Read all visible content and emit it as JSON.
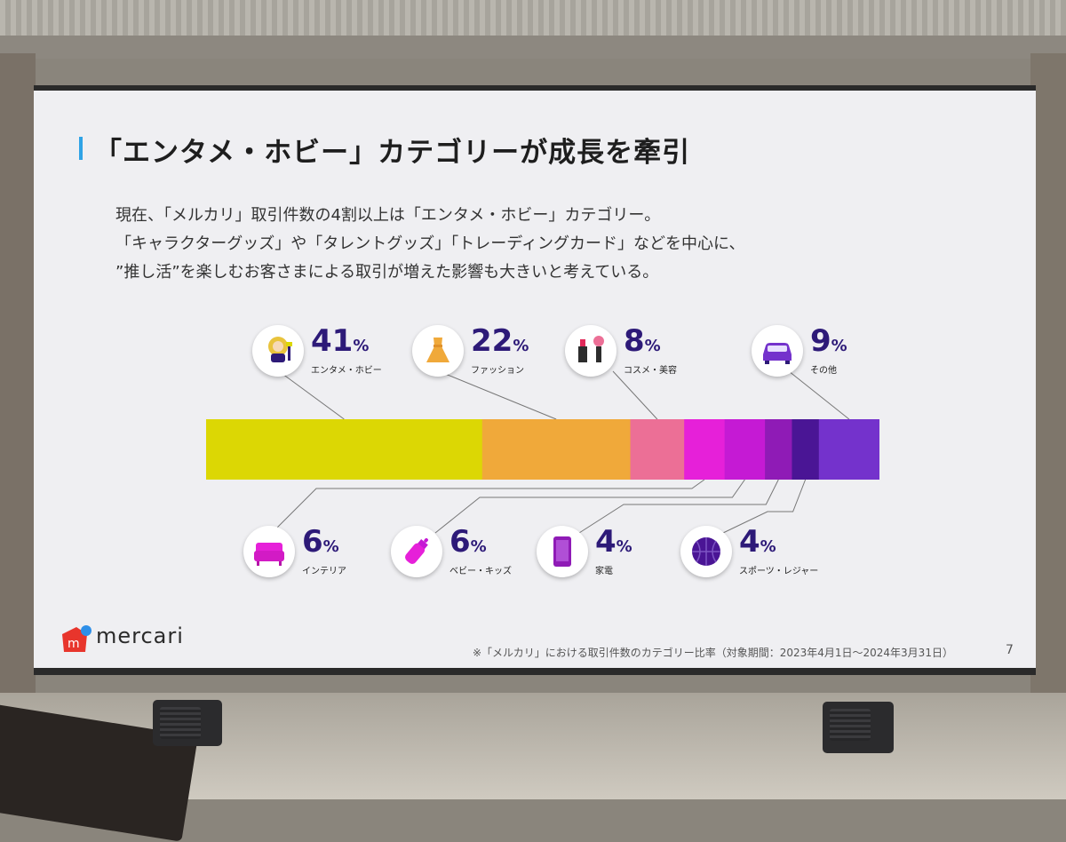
{
  "slide": {
    "title": "「エンタメ・ホビー」カテゴリーが成長を牽引",
    "description": [
      "現在、「メルカリ」取引件数の4割以上は「エンタメ・ホビー」カテゴリー。",
      "「キャラクターグッズ」や「タレントグッズ」「トレーディングカード」などを中心に、",
      "”推し活”を楽しむお客さまによる取引が増えた影響も大きいと考えている。"
    ],
    "footnote": "※「メルカリ」における取引件数のカテゴリー比率（対象期間：2023年4月1日～2024年3月31日）",
    "page_number": "7",
    "logo_text": "mercari"
  },
  "chart_data": {
    "type": "bar",
    "stacked": true,
    "orientation": "horizontal",
    "unit": "%",
    "categories": [
      "エンタメ・ホビー",
      "ファッション",
      "コスメ・美容",
      "インテリア",
      "ベビー・キッズ",
      "家電",
      "スポーツ・レジャー",
      "その他"
    ],
    "values": [
      41,
      22,
      8,
      6,
      6,
      4,
      4,
      9
    ],
    "value_labels": [
      "41",
      "22",
      "8",
      "6",
      "6",
      "4",
      "4",
      "9"
    ],
    "colors": [
      "#dcd704",
      "#f0a93a",
      "#ec6f96",
      "#e620d9",
      "#c51ad4",
      "#8f1bb6",
      "#4a1595",
      "#7432cc"
    ],
    "icons": [
      "person-icon",
      "dress-icon",
      "cosmetics-icon",
      "sofa-icon",
      "baby-bottle-icon",
      "smartphone-icon",
      "basketball-icon",
      "car-icon"
    ],
    "legend": "icon badges above and below the bar",
    "grid": false
  }
}
